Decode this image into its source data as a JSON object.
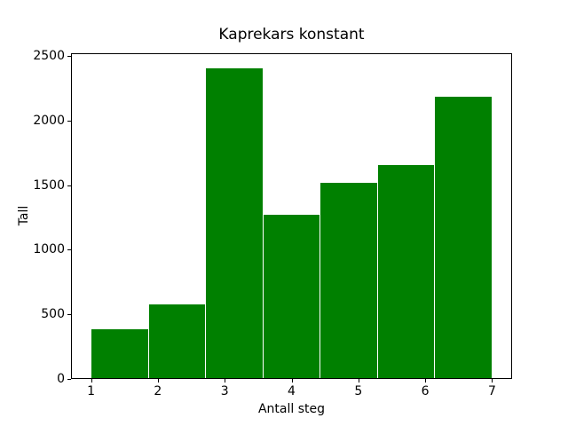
{
  "figure": {
    "background": "#ffffff"
  },
  "chart_data": {
    "type": "bar",
    "title": "Kaprekars konstant",
    "xlabel": "Antall steg",
    "ylabel": "Tall",
    "categories": [
      1,
      2,
      3,
      4,
      5,
      6,
      7
    ],
    "values": [
      383,
      576,
      2400,
      1272,
      1518,
      1656,
      2184
    ],
    "xticks": [
      "1",
      "2",
      "3",
      "4",
      "5",
      "6",
      "7"
    ],
    "yticks": [
      "0",
      "500",
      "1000",
      "1500",
      "2000",
      "2500"
    ],
    "xlim": [
      0.7,
      7.3
    ],
    "ylim": [
      0,
      2520
    ],
    "bin_start": 1,
    "bin_end": 7,
    "bar_color": "#008000",
    "bar_gap_color": "#ffffff",
    "axis_color": "#000000",
    "text_color": "#000000",
    "grid": false,
    "legend_position": "none"
  }
}
